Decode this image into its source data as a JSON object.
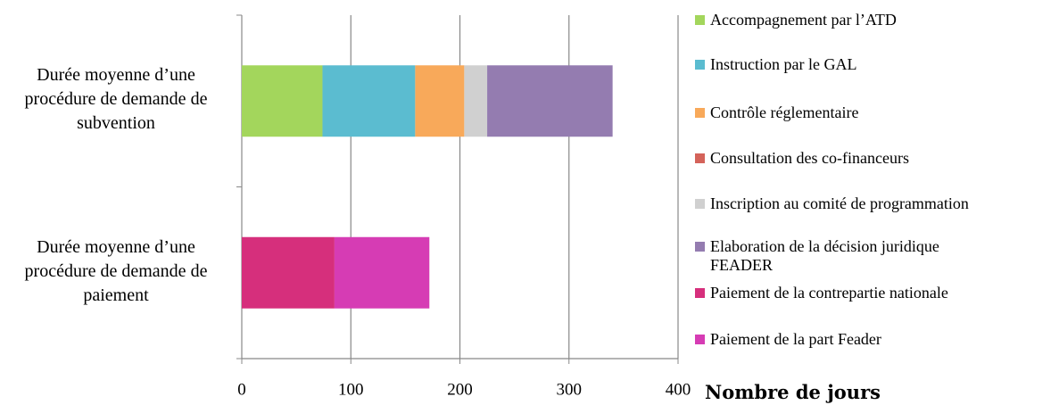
{
  "chart_data": {
    "type": "stacked-bar-horizontal",
    "categories": [
      "Durée moyenne d’une procédure de demande de subvention",
      "Durée moyenne d’une procédure de demande de paiement"
    ],
    "series": [
      {
        "name": "Accompagnement par l’ATD",
        "color": "#a3d65c",
        "values": [
          74,
          0
        ]
      },
      {
        "name": "Instruction par le GAL",
        "color": "#5bbcd0",
        "values": [
          85,
          0
        ]
      },
      {
        "name": "Contrôle réglementaire",
        "color": "#f8a95a",
        "values": [
          45,
          0
        ]
      },
      {
        "name": "Consultation des co-financeurs",
        "color": "#d4635a",
        "values": [
          0,
          0
        ]
      },
      {
        "name": "Inscription au comité de programmation",
        "color": "#d0d0d0",
        "values": [
          21,
          0
        ]
      },
      {
        "name": "Elaboration de la décision juridique FEADER",
        "color": "#947cb0",
        "values": [
          115,
          0
        ]
      },
      {
        "name": "Paiement de la contrepartie nationale",
        "color": "#d62f7c",
        "values": [
          0,
          85
        ]
      },
      {
        "name": "Paiement de la part Feader",
        "color": "#d63cb4",
        "values": [
          0,
          87
        ]
      }
    ],
    "x_label": "Nombre de jours",
    "xlim": [
      0,
      400
    ],
    "xticks": [
      0,
      100,
      200,
      300,
      400
    ],
    "grid": true,
    "legend": "right"
  }
}
